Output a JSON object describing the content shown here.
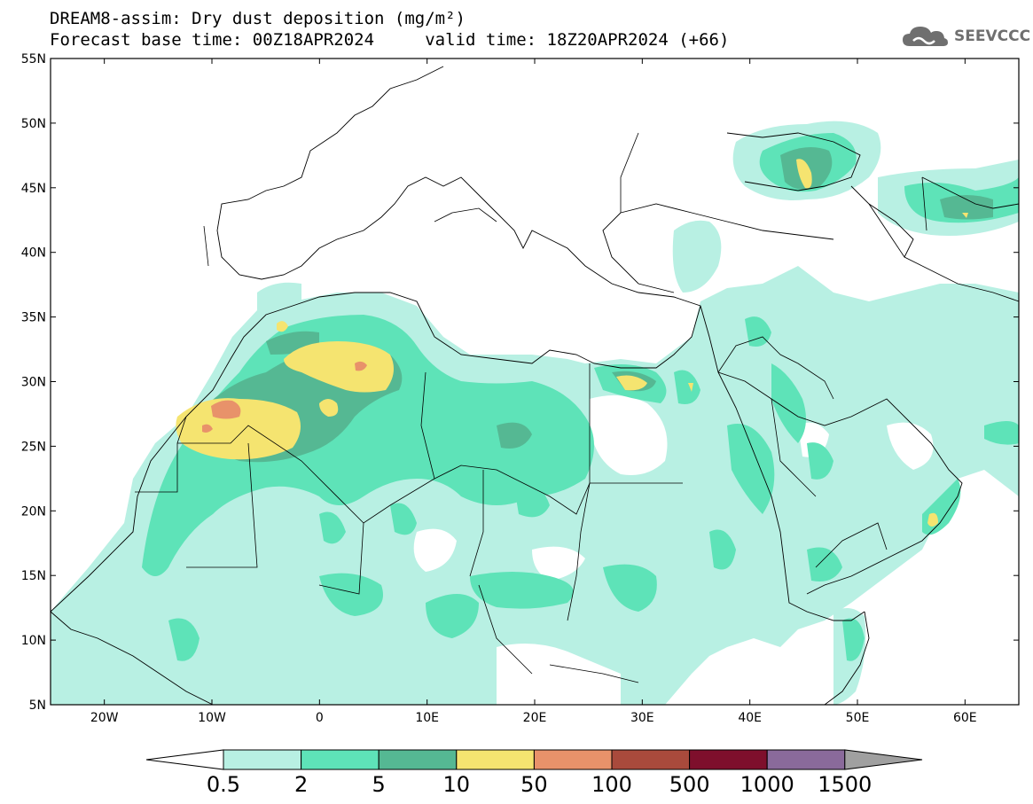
{
  "title": {
    "line1": "DREAM8-assim: Dry dust deposition (mg/m²)",
    "line2": "Forecast base time: 00Z18APR2024     valid time: 18Z20APR2024 (+66)"
  },
  "logo": {
    "text": "SEEVCCC",
    "icon": "cloud-icon"
  },
  "map": {
    "lon_range": [
      -25,
      65
    ],
    "lat_range": [
      5,
      55
    ],
    "lat_ticks": [
      "55N",
      "50N",
      "45N",
      "40N",
      "35N",
      "30N",
      "25N",
      "20N",
      "15N",
      "10N",
      "5N"
    ],
    "lon_ticks": [
      "20W",
      "10W",
      "0",
      "10E",
      "20E",
      "30E",
      "40E",
      "50E",
      "60E"
    ]
  },
  "colorbar": {
    "labels": [
      "0.5",
      "2",
      "5",
      "10",
      "50",
      "100",
      "500",
      "1000",
      "1500"
    ],
    "colors": [
      "#b8f0e3",
      "#5ee3b8",
      "#55b893",
      "#f5e470",
      "#e8926a",
      "#a94a3c",
      "#7e0f2c",
      "#8a6a9b"
    ],
    "overflow_color": "#a0a0a0",
    "underflow_color": "#ffffff"
  }
}
